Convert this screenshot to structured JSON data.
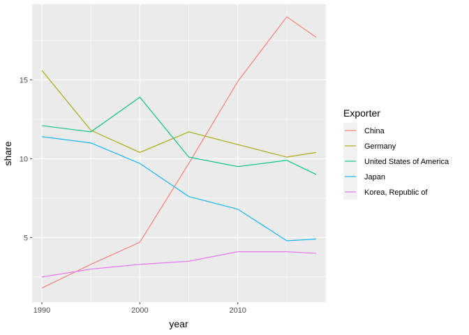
{
  "chart_data": {
    "type": "line",
    "title": "",
    "xlabel": "year",
    "ylabel": "share",
    "x": [
      1990,
      1995,
      2000,
      2005,
      2010,
      2015,
      2018
    ],
    "xlim": [
      1989,
      2019
    ],
    "ylim": [
      0.9,
      19.8
    ],
    "x_ticks": [
      1990,
      2000,
      2010
    ],
    "y_ticks": [
      5,
      10,
      15
    ],
    "x_tick_labels": [
      "1990",
      "2000",
      "2010"
    ],
    "y_tick_labels": [
      "5",
      "10",
      "15"
    ],
    "grid": true,
    "legend": {
      "title": "Exporter",
      "position": "right"
    },
    "series": [
      {
        "name": "China",
        "color": "#F8766D",
        "values": [
          1.8,
          3.3,
          4.7,
          9.7,
          14.9,
          19.0,
          17.7
        ]
      },
      {
        "name": "Germany",
        "color": "#A3A500",
        "values": [
          15.6,
          11.8,
          10.4,
          11.7,
          10.9,
          10.1,
          10.4
        ]
      },
      {
        "name": "United States of America",
        "color": "#00BF7D",
        "values": [
          12.1,
          11.7,
          13.9,
          10.1,
          9.5,
          9.9,
          9.0
        ]
      },
      {
        "name": "Japan",
        "color": "#00B0F6",
        "values": [
          11.4,
          11.0,
          9.7,
          7.6,
          6.8,
          4.8,
          4.9
        ]
      },
      {
        "name": "Korea, Republic of",
        "color": "#E76BF3",
        "values": [
          2.5,
          3.0,
          3.3,
          3.5,
          4.1,
          4.1,
          4.0
        ]
      }
    ]
  }
}
